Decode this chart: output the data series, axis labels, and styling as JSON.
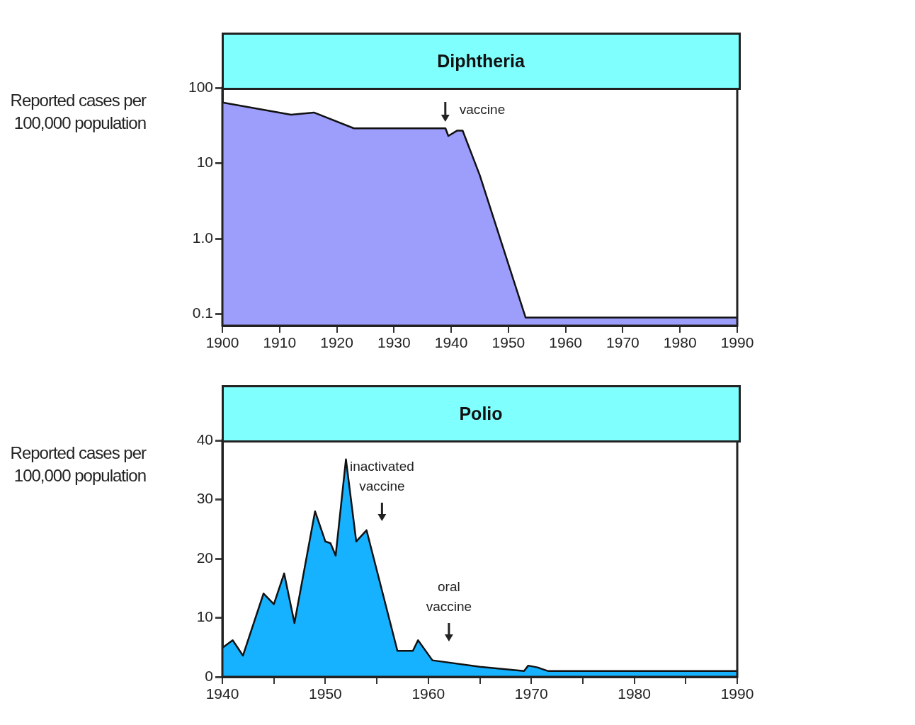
{
  "chart_data": [
    {
      "type": "area",
      "title": "Diphtheria",
      "ylabel": "Reported cases per 100,000 population",
      "log": "y",
      "x": [
        1900,
        1912,
        1916,
        1923,
        1939,
        1939.5,
        1941,
        1942,
        1945,
        1953,
        1990
      ],
      "series": [
        {
          "color": "#9d9dfb",
          "values": [
            64,
            44,
            47,
            29,
            29,
            23,
            27,
            27,
            6.9,
            0.09,
            0.09
          ]
        }
      ],
      "xlim": [
        1900,
        1990
      ],
      "xticks": [
        1900,
        1910,
        1920,
        1930,
        1940,
        1950,
        1960,
        1970,
        1980,
        1990
      ],
      "ylim": [
        0.07,
        100
      ],
      "yticks": [
        {
          "value": 0.1,
          "label": "0.1"
        },
        {
          "value": 1,
          "label": "1.0"
        },
        10,
        100
      ],
      "annotations": [
        "vaccine"
      ]
    },
    {
      "type": "area",
      "title": "Polio",
      "ylabel": "Reported cases per 100,000 population",
      "x": [
        1940,
        1941,
        1942,
        1944,
        1945,
        1946,
        1947,
        1949,
        1950,
        1950.5,
        1951,
        1952,
        1953,
        1954,
        1957,
        1958.5,
        1959,
        1960.4,
        1965,
        1969.3,
        1969.7,
        1970.6,
        1971.6,
        1990
      ],
      "series": [
        {
          "color": "#17b2ff",
          "values": [
            4.9,
            6.2,
            3.6,
            14.1,
            12.3,
            17.5,
            9.1,
            28,
            22.9,
            22.6,
            20.5,
            36.8,
            22.9,
            24.8,
            4.4,
            4.4,
            6.2,
            2.8,
            1.7,
            1,
            1.9,
            1.6,
            1,
            1
          ]
        }
      ],
      "xlim": [
        1940,
        1990
      ],
      "xticks": [
        1940,
        {
          "value": 1945,
          "label": null
        },
        1950,
        {
          "value": 1955,
          "label": null
        },
        1960,
        {
          "value": 1965,
          "label": null
        },
        1970,
        {
          "value": 1975,
          "label": null
        },
        1980,
        {
          "value": 1985,
          "label": null
        },
        1990
      ],
      "ylim": [
        0,
        40
      ],
      "yticks": [
        0,
        10,
        20,
        30,
        40
      ],
      "annotations": [
        "inactivated vaccine",
        "oral vaccine"
      ]
    }
  ]
}
